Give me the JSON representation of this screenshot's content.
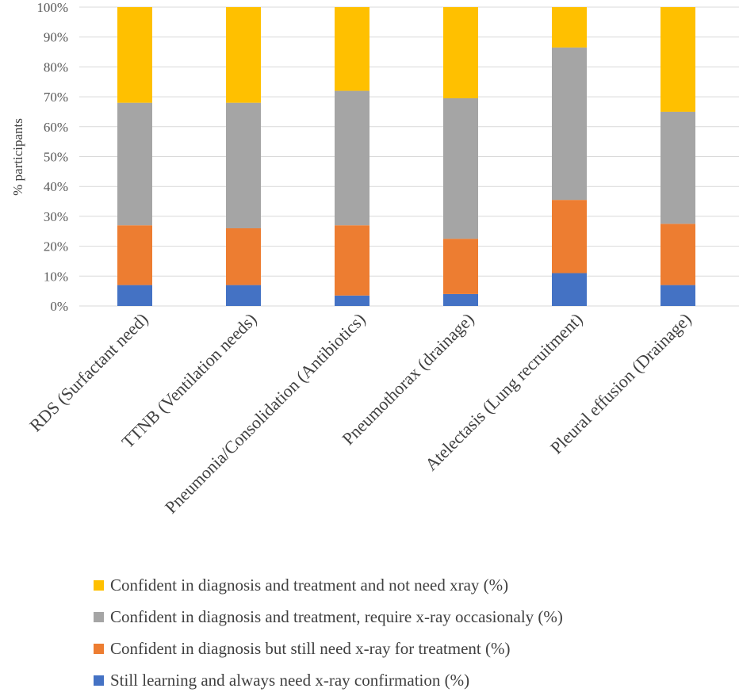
{
  "chart_data": {
    "type": "bar",
    "stacked": true,
    "ylabel": "% participants",
    "xlabel": "",
    "ylim": [
      0,
      100
    ],
    "yticks": [
      "0%",
      "10%",
      "20%",
      "30%",
      "40%",
      "50%",
      "60%",
      "70%",
      "80%",
      "90%",
      "100%"
    ],
    "grid": true,
    "legend_position": "bottom",
    "categories": [
      "RDS (Surfactant need)",
      "TTNB (Ventilation needs)",
      "Pneumonia/Consolidation (Antibiotics)",
      "Pneumothorax (drainage)",
      "Atelectasis (Lung recruitment)",
      "Pleural effusion (Drainage)"
    ],
    "series": [
      {
        "name": "Still learning and always need x-ray confirmation (%)",
        "color": "#4472C4",
        "values": [
          7,
          7,
          3.5,
          4,
          11,
          7
        ]
      },
      {
        "name": "Confident in diagnosis but still need x-ray for treatment (%)",
        "color": "#ED7D31",
        "values": [
          20,
          19,
          23.5,
          18.5,
          24.5,
          20.5
        ]
      },
      {
        "name": "Confident in diagnosis and treatment, require x-ray occasionaly (%)",
        "color": "#A5A5A5",
        "values": [
          41,
          42,
          45,
          47,
          51,
          37.5
        ]
      },
      {
        "name": "Confident in diagnosis and treatment and not need xray (%)",
        "color": "#FFC000",
        "values": [
          32,
          32,
          28,
          30.5,
          13.5,
          35
        ]
      }
    ]
  }
}
